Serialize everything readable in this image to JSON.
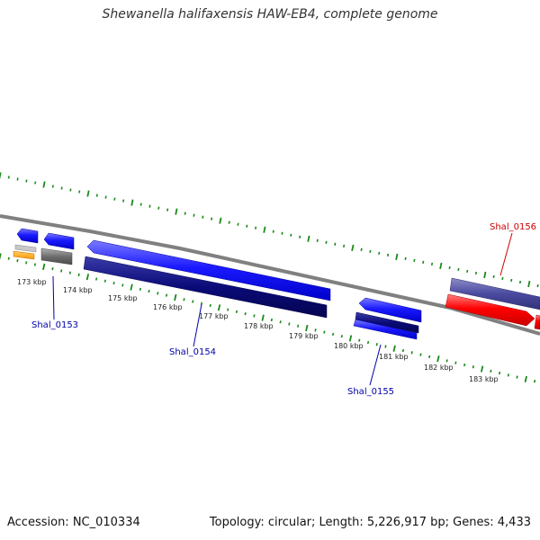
{
  "title": "Shewanella halifaxensis HAW-EB4, complete genome",
  "accession": "Accession: NC_010334",
  "summary": "Topology: circular; Length: 5,226,917 bp; Genes: 4,433",
  "ticks": [
    "173 kbp",
    "174 kbp",
    "175 kbp",
    "176 kbp",
    "177 kbp",
    "178 kbp",
    "179 kbp",
    "180 kbp",
    "181 kbp",
    "182 kbp",
    "183 kbp"
  ],
  "genes": [
    {
      "label": "Shal_0153",
      "color": "#0000aa"
    },
    {
      "label": "Shal_0154",
      "color": "#0000aa"
    },
    {
      "label": "Shal_0155",
      "color": "#0000aa"
    },
    {
      "label": "Shal_0156",
      "color": "#cc0000"
    }
  ],
  "colors": {
    "backbone": "#808080",
    "tick": "#1a8a1a",
    "blue": "#1a1aff",
    "navy": "#0a0a78",
    "purple": "#4a4aa0",
    "red": "#ff0000",
    "gray": "#6e6e6e",
    "orange": "#ff9900"
  }
}
